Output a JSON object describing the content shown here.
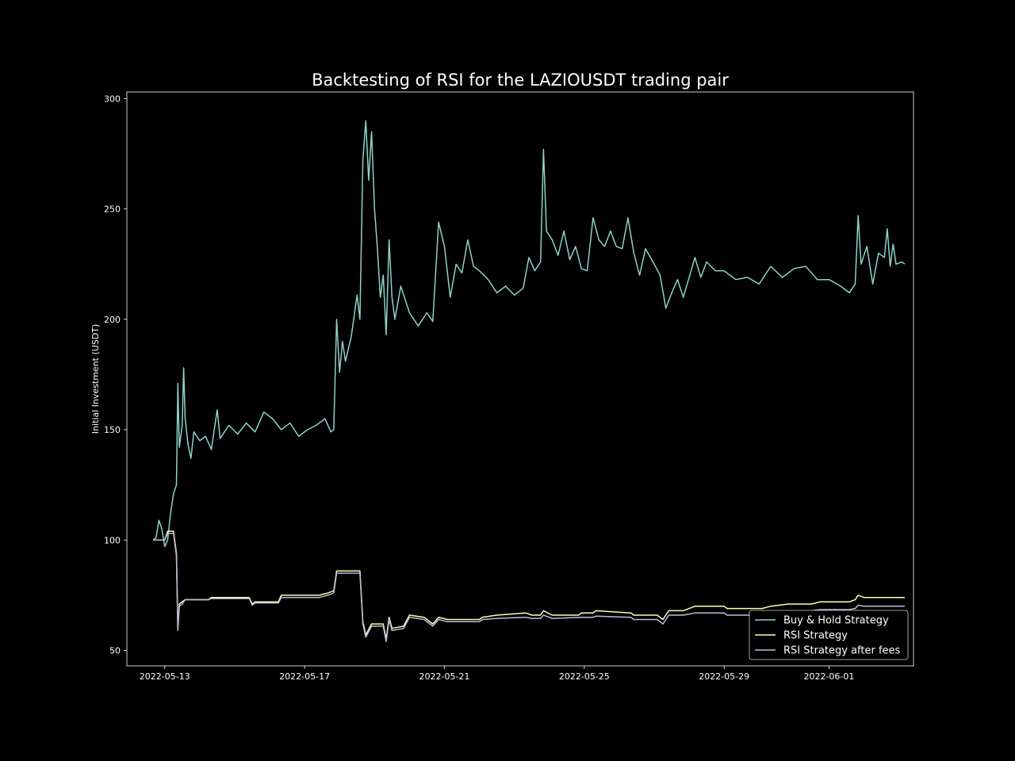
{
  "chart_data": {
    "type": "line",
    "title": "Backtesting of RSI for the LAZIOUSDT trading pair",
    "xlabel": "",
    "ylabel": "Initial Investment (USDT)",
    "xlim": [
      "2022-05-11T22:00",
      "2022-06-03T10:00"
    ],
    "ylim": [
      43,
      303
    ],
    "yticks": [
      50,
      100,
      150,
      200,
      250,
      300
    ],
    "xticks": [
      "2022-05-13",
      "2022-05-17",
      "2022-05-21",
      "2022-05-25",
      "2022-05-29",
      "2022-06-01"
    ],
    "grid": false,
    "legend_position": "lower-right",
    "background": "#000000",
    "series": [
      {
        "name": "Buy & Hold Strategy",
        "color": "#8dd3c7",
        "points": [
          [
            "2022-05-12T16:00",
            100
          ],
          [
            "2022-05-12T18:00",
            101
          ],
          [
            "2022-05-12T20:00",
            109
          ],
          [
            "2022-05-12T22:00",
            105
          ],
          [
            "2022-05-13T00:00",
            97
          ],
          [
            "2022-05-13T02:00",
            100
          ],
          [
            "2022-05-13T04:00",
            112
          ],
          [
            "2022-05-13T06:00",
            121
          ],
          [
            "2022-05-13T08:00",
            125
          ],
          [
            "2022-05-13T09:00",
            171
          ],
          [
            "2022-05-13T10:00",
            142
          ],
          [
            "2022-05-13T12:00",
            152
          ],
          [
            "2022-05-13T13:00",
            178
          ],
          [
            "2022-05-13T14:00",
            155
          ],
          [
            "2022-05-13T16:00",
            143
          ],
          [
            "2022-05-13T18:00",
            137
          ],
          [
            "2022-05-13T20:00",
            149
          ],
          [
            "2022-05-14T00:00",
            145
          ],
          [
            "2022-05-14T04:00",
            147
          ],
          [
            "2022-05-14T08:00",
            141
          ],
          [
            "2022-05-14T12:00",
            159
          ],
          [
            "2022-05-14T14:00",
            146
          ],
          [
            "2022-05-14T20:00",
            152
          ],
          [
            "2022-05-15T02:00",
            148
          ],
          [
            "2022-05-15T08:00",
            153
          ],
          [
            "2022-05-15T14:00",
            149
          ],
          [
            "2022-05-15T20:00",
            158
          ],
          [
            "2022-05-16T02:00",
            155
          ],
          [
            "2022-05-16T08:00",
            150
          ],
          [
            "2022-05-16T14:00",
            153
          ],
          [
            "2022-05-16T20:00",
            147
          ],
          [
            "2022-05-17T02:00",
            150
          ],
          [
            "2022-05-17T08:00",
            152
          ],
          [
            "2022-05-17T14:00",
            155
          ],
          [
            "2022-05-17T18:00",
            149
          ],
          [
            "2022-05-17T20:00",
            150
          ],
          [
            "2022-05-17T22:00",
            200
          ],
          [
            "2022-05-18T00:00",
            176
          ],
          [
            "2022-05-18T02:00",
            190
          ],
          [
            "2022-05-18T04:00",
            181
          ],
          [
            "2022-05-18T08:00",
            192
          ],
          [
            "2022-05-18T12:00",
            211
          ],
          [
            "2022-05-18T14:00",
            200
          ],
          [
            "2022-05-18T16:00",
            272
          ],
          [
            "2022-05-18T18:00",
            290
          ],
          [
            "2022-05-18T20:00",
            263
          ],
          [
            "2022-05-18T22:00",
            285
          ],
          [
            "2022-05-19T00:00",
            250
          ],
          [
            "2022-05-19T02:00",
            232
          ],
          [
            "2022-05-19T04:00",
            210
          ],
          [
            "2022-05-19T06:00",
            220
          ],
          [
            "2022-05-19T08:00",
            193
          ],
          [
            "2022-05-19T10:00",
            236
          ],
          [
            "2022-05-19T12:00",
            210
          ],
          [
            "2022-05-19T14:00",
            200
          ],
          [
            "2022-05-19T18:00",
            215
          ],
          [
            "2022-05-20T00:00",
            203
          ],
          [
            "2022-05-20T06:00",
            197
          ],
          [
            "2022-05-20T12:00",
            203
          ],
          [
            "2022-05-20T16:00",
            199
          ],
          [
            "2022-05-20T20:00",
            244
          ],
          [
            "2022-05-21T00:00",
            233
          ],
          [
            "2022-05-21T04:00",
            210
          ],
          [
            "2022-05-21T08:00",
            225
          ],
          [
            "2022-05-21T12:00",
            221
          ],
          [
            "2022-05-21T16:00",
            236
          ],
          [
            "2022-05-21T20:00",
            224
          ],
          [
            "2022-05-22T00:00",
            222
          ],
          [
            "2022-05-22T06:00",
            218
          ],
          [
            "2022-05-22T12:00",
            212
          ],
          [
            "2022-05-22T18:00",
            215
          ],
          [
            "2022-05-23T00:00",
            211
          ],
          [
            "2022-05-23T06:00",
            214
          ],
          [
            "2022-05-23T10:00",
            228
          ],
          [
            "2022-05-23T14:00",
            222
          ],
          [
            "2022-05-23T18:00",
            226
          ],
          [
            "2022-05-23T20:00",
            277
          ],
          [
            "2022-05-23T22:00",
            240
          ],
          [
            "2022-05-24T02:00",
            236
          ],
          [
            "2022-05-24T06:00",
            229
          ],
          [
            "2022-05-24T10:00",
            240
          ],
          [
            "2022-05-24T14:00",
            227
          ],
          [
            "2022-05-24T18:00",
            233
          ],
          [
            "2022-05-24T22:00",
            223
          ],
          [
            "2022-05-25T02:00",
            222
          ],
          [
            "2022-05-25T06:00",
            246
          ],
          [
            "2022-05-25T10:00",
            236
          ],
          [
            "2022-05-25T14:00",
            233
          ],
          [
            "2022-05-25T18:00",
            240
          ],
          [
            "2022-05-25T22:00",
            233
          ],
          [
            "2022-05-26T02:00",
            232
          ],
          [
            "2022-05-26T06:00",
            246
          ],
          [
            "2022-05-26T10:00",
            230
          ],
          [
            "2022-05-26T14:00",
            220
          ],
          [
            "2022-05-26T18:00",
            232
          ],
          [
            "2022-05-27T00:00",
            225
          ],
          [
            "2022-05-27T04:00",
            220
          ],
          [
            "2022-05-27T08:00",
            205
          ],
          [
            "2022-05-27T12:00",
            212
          ],
          [
            "2022-05-27T16:00",
            218
          ],
          [
            "2022-05-27T20:00",
            210
          ],
          [
            "2022-05-28T00:00",
            219
          ],
          [
            "2022-05-28T04:00",
            228
          ],
          [
            "2022-05-28T08:00",
            219
          ],
          [
            "2022-05-28T12:00",
            226
          ],
          [
            "2022-05-28T18:00",
            222
          ],
          [
            "2022-05-29T00:00",
            222
          ],
          [
            "2022-05-29T08:00",
            218
          ],
          [
            "2022-05-29T16:00",
            219
          ],
          [
            "2022-05-30T00:00",
            216
          ],
          [
            "2022-05-30T08:00",
            224
          ],
          [
            "2022-05-30T16:00",
            219
          ],
          [
            "2022-05-31T00:00",
            223
          ],
          [
            "2022-05-31T08:00",
            224
          ],
          [
            "2022-05-31T16:00",
            218
          ],
          [
            "2022-06-01T00:00",
            218
          ],
          [
            "2022-06-01T08:00",
            215
          ],
          [
            "2022-06-01T14:00",
            212
          ],
          [
            "2022-06-01T18:00",
            216
          ],
          [
            "2022-06-01T20:00",
            247
          ],
          [
            "2022-06-01T22:00",
            225
          ],
          [
            "2022-06-02T02:00",
            233
          ],
          [
            "2022-06-02T06:00",
            216
          ],
          [
            "2022-06-02T10:00",
            230
          ],
          [
            "2022-06-02T14:00",
            228
          ],
          [
            "2022-06-02T16:00",
            241
          ],
          [
            "2022-06-02T18:00",
            224
          ],
          [
            "2022-06-02T20:00",
            234
          ],
          [
            "2022-06-02T22:00",
            225
          ],
          [
            "2022-06-03T02:00",
            226
          ],
          [
            "2022-06-03T04:00",
            225
          ]
        ]
      },
      {
        "name": "RSI Strategy",
        "color": "#ffffb3",
        "points": [
          [
            "2022-05-12T16:00",
            100
          ],
          [
            "2022-05-13T00:00",
            100
          ],
          [
            "2022-05-13T02:00",
            104
          ],
          [
            "2022-05-13T06:00",
            104
          ],
          [
            "2022-05-13T08:00",
            94
          ],
          [
            "2022-05-13T09:00",
            60
          ],
          [
            "2022-05-13T10:00",
            71
          ],
          [
            "2022-05-13T12:00",
            72
          ],
          [
            "2022-05-13T14:00",
            73
          ],
          [
            "2022-05-14T06:00",
            73
          ],
          [
            "2022-05-14T08:00",
            74
          ],
          [
            "2022-05-15T10:00",
            74
          ],
          [
            "2022-05-15T12:00",
            71
          ],
          [
            "2022-05-15T14:00",
            72
          ],
          [
            "2022-05-16T06:00",
            72
          ],
          [
            "2022-05-16T08:00",
            75
          ],
          [
            "2022-05-17T10:00",
            75
          ],
          [
            "2022-05-17T16:00",
            76
          ],
          [
            "2022-05-17T20:00",
            77
          ],
          [
            "2022-05-17T22:00",
            86
          ],
          [
            "2022-05-18T14:00",
            86
          ],
          [
            "2022-05-18T16:00",
            63
          ],
          [
            "2022-05-18T18:00",
            57
          ],
          [
            "2022-05-18T22:00",
            62
          ],
          [
            "2022-05-19T06:00",
            62
          ],
          [
            "2022-05-19T08:00",
            55
          ],
          [
            "2022-05-19T10:00",
            65
          ],
          [
            "2022-05-19T12:00",
            60
          ],
          [
            "2022-05-19T20:00",
            61
          ],
          [
            "2022-05-20T00:00",
            66
          ],
          [
            "2022-05-20T10:00",
            65
          ],
          [
            "2022-05-20T16:00",
            62
          ],
          [
            "2022-05-20T20:00",
            65
          ],
          [
            "2022-05-21T02:00",
            64
          ],
          [
            "2022-05-22T00:00",
            64
          ],
          [
            "2022-05-22T02:00",
            65
          ],
          [
            "2022-05-22T12:00",
            66
          ],
          [
            "2022-05-23T08:00",
            67
          ],
          [
            "2022-05-23T12:00",
            66
          ],
          [
            "2022-05-23T18:00",
            66
          ],
          [
            "2022-05-23T20:00",
            68
          ],
          [
            "2022-05-24T02:00",
            66
          ],
          [
            "2022-05-24T20:00",
            66
          ],
          [
            "2022-05-24T22:00",
            67
          ],
          [
            "2022-05-25T06:00",
            67
          ],
          [
            "2022-05-25T08:00",
            68
          ],
          [
            "2022-05-26T08:00",
            67
          ],
          [
            "2022-05-26T10:00",
            66
          ],
          [
            "2022-05-27T02:00",
            66
          ],
          [
            "2022-05-27T06:00",
            64
          ],
          [
            "2022-05-27T10:00",
            68
          ],
          [
            "2022-05-27T20:00",
            68
          ],
          [
            "2022-05-28T00:00",
            69
          ],
          [
            "2022-05-28T04:00",
            70
          ],
          [
            "2022-05-29T00:00",
            70
          ],
          [
            "2022-05-29T02:00",
            69
          ],
          [
            "2022-05-30T02:00",
            69
          ],
          [
            "2022-05-30T08:00",
            70
          ],
          [
            "2022-05-30T20:00",
            71
          ],
          [
            "2022-05-31T12:00",
            71
          ],
          [
            "2022-05-31T18:00",
            72
          ],
          [
            "2022-06-01T14:00",
            72
          ],
          [
            "2022-06-01T18:00",
            73
          ],
          [
            "2022-06-01T20:00",
            75
          ],
          [
            "2022-06-02T00:00",
            74
          ],
          [
            "2022-06-03T04:00",
            74
          ]
        ]
      },
      {
        "name": "RSI Strategy after fees",
        "color": "#bebada",
        "points": [
          [
            "2022-05-12T16:00",
            100
          ],
          [
            "2022-05-13T00:00",
            100
          ],
          [
            "2022-05-13T02:00",
            103
          ],
          [
            "2022-05-13T06:00",
            103
          ],
          [
            "2022-05-13T08:00",
            93
          ],
          [
            "2022-05-13T09:00",
            59
          ],
          [
            "2022-05-13T10:00",
            70
          ],
          [
            "2022-05-13T12:00",
            71
          ],
          [
            "2022-05-13T14:00",
            73
          ],
          [
            "2022-05-14T06:00",
            73
          ],
          [
            "2022-05-14T08:00",
            73.5
          ],
          [
            "2022-05-15T10:00",
            73.5
          ],
          [
            "2022-05-15T12:00",
            70.5
          ],
          [
            "2022-05-15T14:00",
            71.5
          ],
          [
            "2022-05-16T06:00",
            71.5
          ],
          [
            "2022-05-16T08:00",
            74
          ],
          [
            "2022-05-17T10:00",
            74
          ],
          [
            "2022-05-17T16:00",
            75
          ],
          [
            "2022-05-17T20:00",
            76
          ],
          [
            "2022-05-17T22:00",
            85
          ],
          [
            "2022-05-18T14:00",
            85
          ],
          [
            "2022-05-18T16:00",
            62
          ],
          [
            "2022-05-18T18:00",
            56
          ],
          [
            "2022-05-18T22:00",
            61
          ],
          [
            "2022-05-19T06:00",
            61
          ],
          [
            "2022-05-19T08:00",
            54
          ],
          [
            "2022-05-19T10:00",
            64
          ],
          [
            "2022-05-19T12:00",
            59
          ],
          [
            "2022-05-19T20:00",
            60
          ],
          [
            "2022-05-20T00:00",
            65
          ],
          [
            "2022-05-20T10:00",
            64
          ],
          [
            "2022-05-20T16:00",
            61
          ],
          [
            "2022-05-20T20:00",
            64
          ],
          [
            "2022-05-21T02:00",
            63
          ],
          [
            "2022-05-22T00:00",
            63
          ],
          [
            "2022-05-22T02:00",
            64
          ],
          [
            "2022-05-22T12:00",
            64.5
          ],
          [
            "2022-05-23T08:00",
            65
          ],
          [
            "2022-05-23T12:00",
            64.5
          ],
          [
            "2022-05-23T18:00",
            64.5
          ],
          [
            "2022-05-23T20:00",
            66
          ],
          [
            "2022-05-24T02:00",
            64.5
          ],
          [
            "2022-05-24T22:00",
            65
          ],
          [
            "2022-05-25T06:00",
            65
          ],
          [
            "2022-05-25T08:00",
            65.5
          ],
          [
            "2022-05-26T08:00",
            65
          ],
          [
            "2022-05-26T10:00",
            64
          ],
          [
            "2022-05-27T02:00",
            64
          ],
          [
            "2022-05-27T06:00",
            62
          ],
          [
            "2022-05-27T10:00",
            66
          ],
          [
            "2022-05-27T20:00",
            66
          ],
          [
            "2022-05-28T00:00",
            66.5
          ],
          [
            "2022-05-28T04:00",
            67
          ],
          [
            "2022-05-29T00:00",
            67
          ],
          [
            "2022-05-29T02:00",
            66
          ],
          [
            "2022-05-30T02:00",
            66
          ],
          [
            "2022-05-30T08:00",
            67
          ],
          [
            "2022-05-30T20:00",
            67.5
          ],
          [
            "2022-05-31T12:00",
            68
          ],
          [
            "2022-05-31T18:00",
            68.5
          ],
          [
            "2022-06-01T14:00",
            68.5
          ],
          [
            "2022-06-01T18:00",
            69
          ],
          [
            "2022-06-01T20:00",
            70.5
          ],
          [
            "2022-06-02T00:00",
            70
          ],
          [
            "2022-06-03T04:00",
            70
          ]
        ]
      }
    ]
  }
}
